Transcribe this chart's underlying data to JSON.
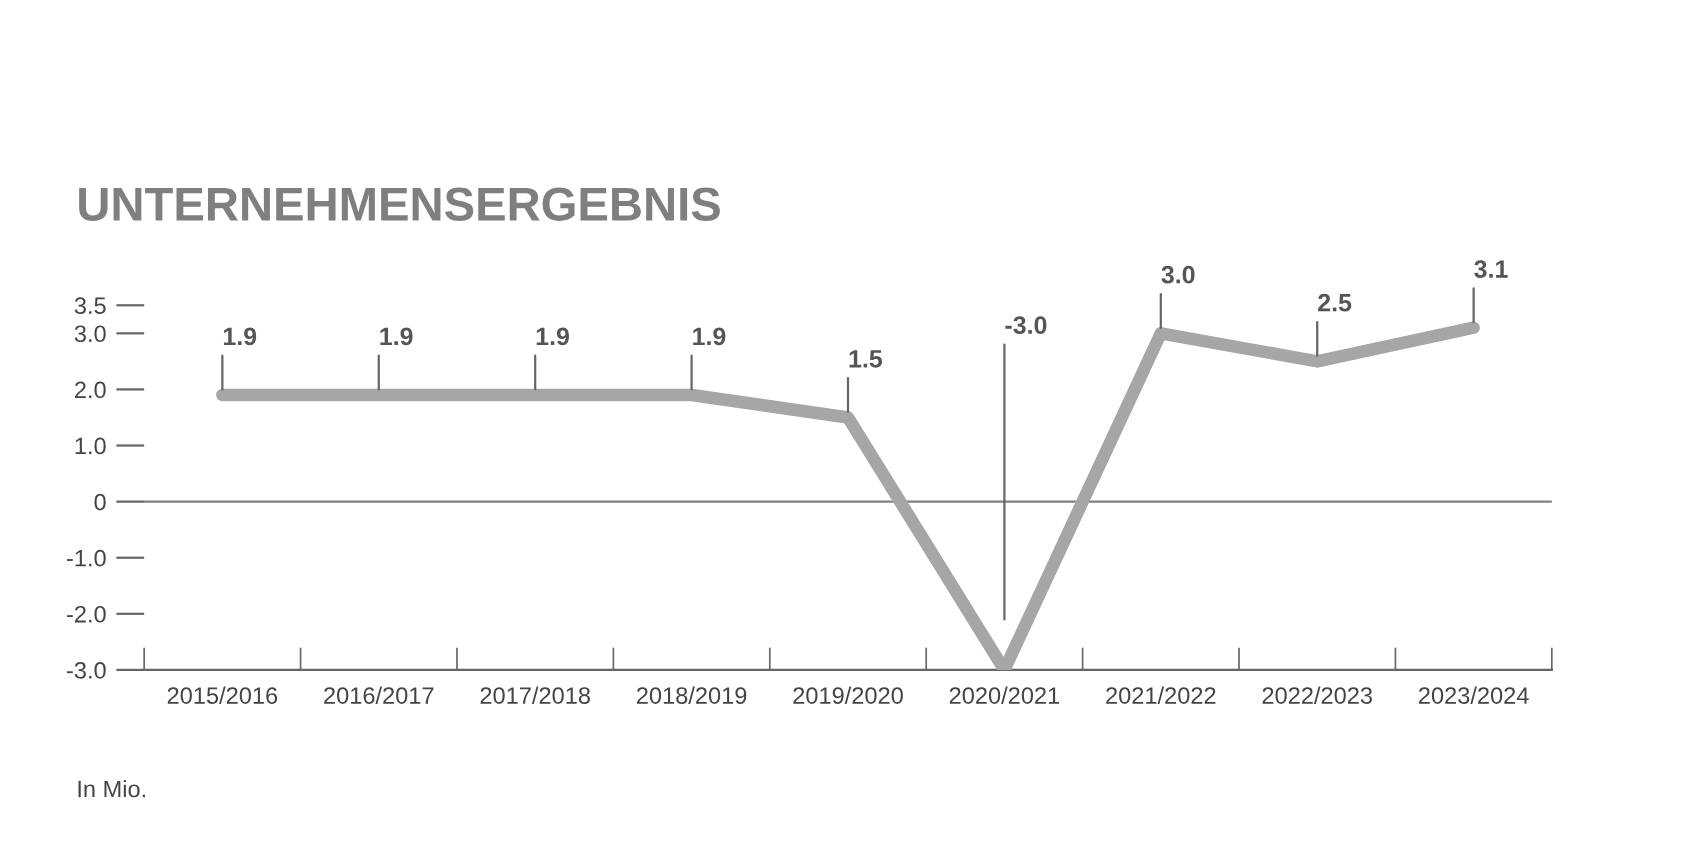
{
  "chart_data": {
    "type": "line",
    "title": "UNTERNEHMENSERGEBNIS",
    "categories": [
      "2015/2016",
      "2016/2017",
      "2017/2018",
      "2018/2019",
      "2019/2020",
      "2020/2021",
      "2021/2022",
      "2022/2023",
      "2023/2024"
    ],
    "series": [
      {
        "color": "#a6a6a6",
        "values": [
          1.9,
          1.9,
          1.9,
          1.9,
          1.5,
          -3.0,
          3.0,
          2.5,
          3.1
        ]
      }
    ],
    "ylim": [
      -3.0,
      3.5
    ],
    "yticks": [
      {
        "value": 3.5,
        "label": "3.5"
      },
      {
        "value": 3.0,
        "label": "3.0"
      },
      {
        "value": 2.0,
        "label": "2.0"
      },
      {
        "value": 1.0,
        "label": "1.0"
      },
      0,
      {
        "value": -1.0,
        "label": "-1.0"
      },
      {
        "value": -2.0,
        "label": "-2.0"
      },
      {
        "value": -3.0,
        "label": "-3.0"
      }
    ],
    "ref_lines": [
      {
        "axis": "y",
        "value": 0,
        "color": "#808080"
      }
    ],
    "value_labels": [
      "1.9",
      "1.9",
      "1.9",
      "1.9",
      "1.5",
      "-3.0",
      "3.0",
      "2.5",
      "3.1"
    ],
    "marker": "none",
    "line_style": "solid",
    "grid": false,
    "legend": false,
    "annotations": [
      "In Mio."
    ]
  }
}
